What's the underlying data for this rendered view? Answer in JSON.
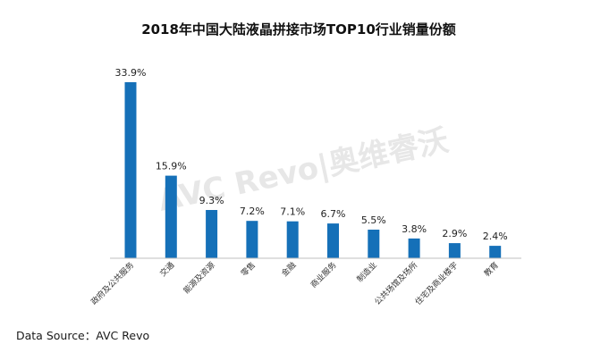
{
  "chart_data": {
    "type": "bar",
    "title": "2018年中国大陆液晶拼接市场TOP10行业销量份额",
    "xlabel": "",
    "ylabel": "",
    "ylim": [
      0,
      36
    ],
    "categories": [
      "政府及公共服务",
      "交通",
      "能源及资源",
      "零售",
      "金融",
      "商业服务",
      "制造业",
      "公共场馆及场所",
      "住宅及商业楼宇",
      "教育"
    ],
    "values": [
      33.9,
      15.9,
      9.3,
      7.2,
      7.1,
      6.7,
      5.5,
      3.8,
      2.9,
      2.4
    ],
    "data_labels": [
      "33.9%",
      "15.9%",
      "9.3%",
      "7.2%",
      "7.1%",
      "6.7%",
      "5.5%",
      "3.8%",
      "2.9%",
      "2.4%"
    ],
    "grid": false,
    "legend": "none",
    "bar_color": "#1570b8",
    "axis_color": "#bfbfbf"
  },
  "watermark": {
    "text": "AVC Revo|奥维睿沃"
  },
  "source": "Data Source：AVC Revo"
}
